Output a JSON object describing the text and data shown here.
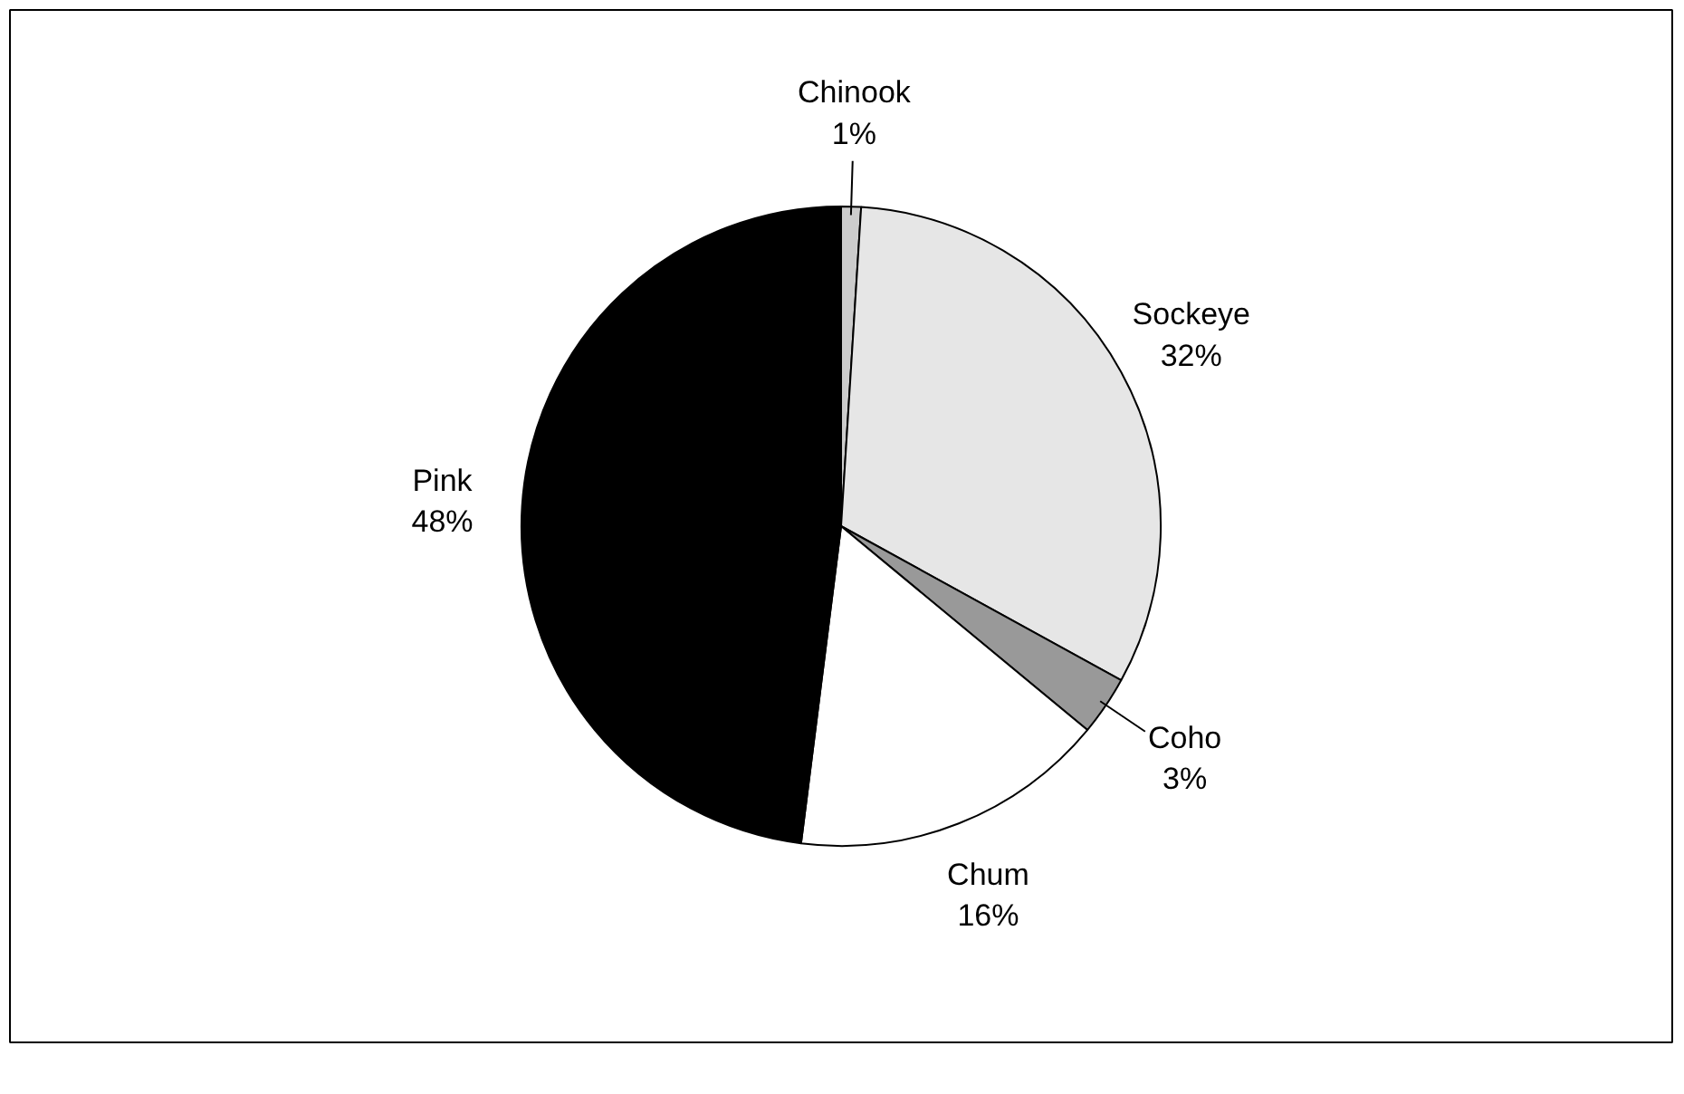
{
  "chart_data": {
    "type": "pie",
    "categories": [
      "Chinook",
      "Sockeye",
      "Coho",
      "Chum",
      "Pink"
    ],
    "values": [
      1,
      32,
      3,
      16,
      48
    ],
    "colors": [
      "#cccccc",
      "#e6e6e6",
      "#999999",
      "#ffffff",
      "#000000"
    ],
    "value_labels": [
      "1%",
      "32%",
      "3%",
      "16%",
      "48%"
    ]
  }
}
